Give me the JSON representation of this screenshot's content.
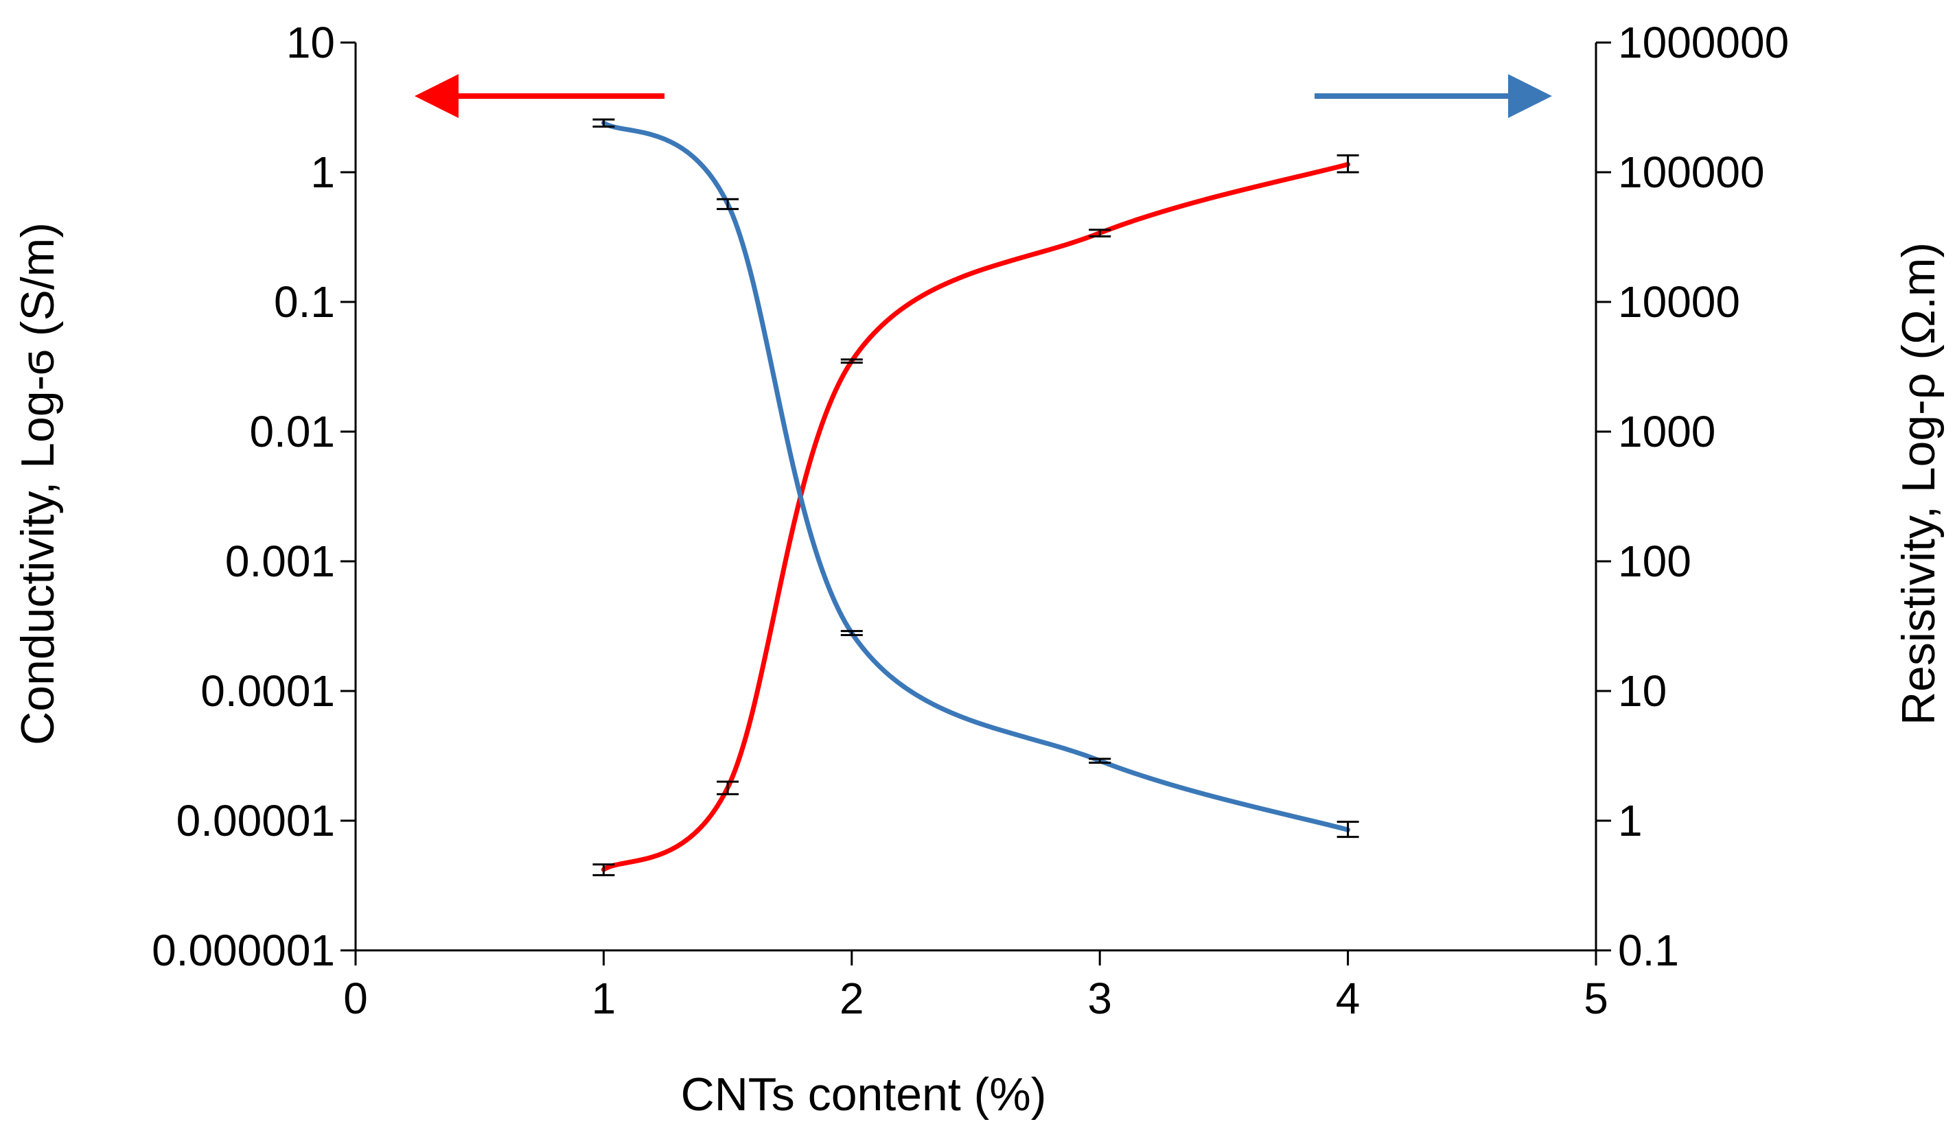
{
  "chart_data": {
    "type": "line",
    "x_axis": {
      "label": "CNTs content (%)",
      "range": [
        0,
        5
      ],
      "ticks": [
        "0",
        "1",
        "2",
        "3",
        "4",
        "5"
      ]
    },
    "y_left": {
      "label": "Conductivity,  Log-ϭ (S/m)",
      "scale": "log",
      "range": [
        1e-06,
        10
      ],
      "ticks": [
        "10",
        "1",
        "0.1",
        "0.01",
        "0.001",
        "0.0001",
        "0.00001",
        "0.000001"
      ]
    },
    "y_right": {
      "label": "Resistivity, Log-ρ (Ω.m)",
      "scale": "log",
      "range": [
        0.1,
        1000000
      ],
      "ticks": [
        "1000000",
        "100000",
        "10000",
        "1000",
        "100",
        "10",
        "1",
        "0.1"
      ]
    },
    "series": [
      {
        "axis": "left",
        "color": "#ff0000",
        "x": [
          1,
          1.5,
          2,
          3,
          4
        ],
        "y": [
          4.2e-06,
          1.8e-05,
          0.035,
          0.34,
          1.15
        ],
        "error_low": [
          3.8e-06,
          1.6e-05,
          0.034,
          0.32,
          1.0
        ],
        "error_high": [
          4.6e-06,
          2e-05,
          0.036,
          0.36,
          1.35
        ],
        "arrow_direction": "left"
      },
      {
        "axis": "right",
        "color": "#3b78b8",
        "x": [
          1,
          1.5,
          2,
          3,
          4
        ],
        "y": [
          240000,
          57000,
          28,
          2.9,
          0.85
        ],
        "error_low": [
          225000,
          52000,
          27,
          2.8,
          0.75
        ],
        "error_high": [
          255000,
          62000,
          29,
          3.0,
          0.98
        ],
        "arrow_direction": "right"
      }
    ],
    "grid": false
  }
}
